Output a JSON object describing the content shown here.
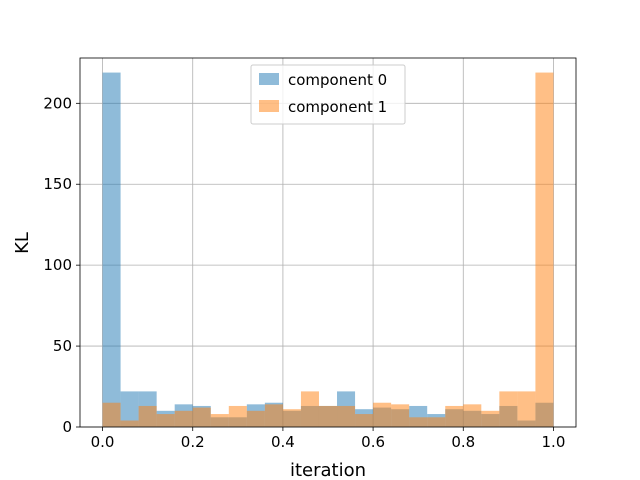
{
  "chart_data": {
    "type": "bar",
    "subtype": "histogram",
    "title": "",
    "xlabel": "iteration",
    "ylabel": "KL",
    "xlim": [
      -0.05,
      1.05
    ],
    "ylim": [
      0,
      228
    ],
    "xticks": [
      "0.0",
      "0.2",
      "0.4",
      "0.6",
      "0.8",
      "1.0"
    ],
    "yticks": [
      "0",
      "50",
      "100",
      "150",
      "200"
    ],
    "grid": true,
    "legend_position": "top-center",
    "bin_edges": [
      0.0,
      0.04,
      0.08,
      0.12,
      0.16,
      0.2,
      0.24,
      0.28,
      0.32,
      0.36,
      0.4,
      0.44,
      0.48,
      0.52,
      0.56,
      0.6,
      0.64,
      0.68,
      0.72,
      0.76,
      0.8,
      0.84,
      0.88,
      0.92,
      0.96,
      1.0
    ],
    "series": [
      {
        "name": "component 0",
        "color": "#1f77b4",
        "alpha": 0.5,
        "values": [
          219,
          22,
          22,
          10,
          14,
          13,
          6,
          6,
          14,
          15,
          10,
          13,
          13,
          22,
          11,
          12,
          11,
          13,
          8,
          11,
          10,
          8,
          13,
          4,
          15
        ]
      },
      {
        "name": "component 1",
        "color": "#ff7f0e",
        "alpha": 0.5,
        "values": [
          15,
          4,
          13,
          8,
          10,
          12,
          8,
          13,
          10,
          14,
          11,
          22,
          13,
          13,
          8,
          15,
          14,
          6,
          6,
          13,
          14,
          10,
          22,
          22,
          219
        ]
      }
    ]
  }
}
